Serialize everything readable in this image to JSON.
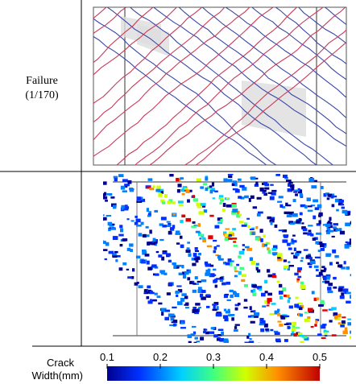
{
  "row_label": {
    "line1": "Failure",
    "line2": "(1/170)"
  },
  "colorbar": {
    "title_line1": "Crack",
    "title_line2": "Width(mm)",
    "range": [
      0.1,
      0.5
    ],
    "ticks": [
      0.1,
      0.2,
      0.3,
      0.4,
      0.5
    ]
  }
}
